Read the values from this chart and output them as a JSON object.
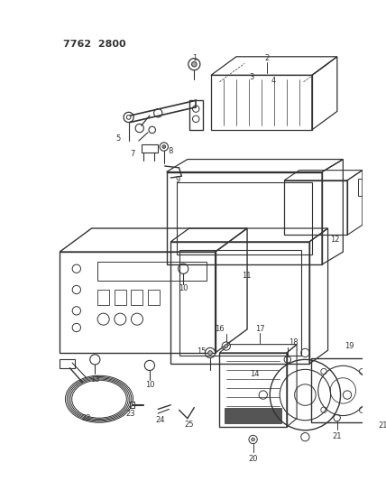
{
  "title": "7762 2800",
  "bg_color": "#ffffff",
  "line_color": "#333333",
  "figsize": [
    4.28,
    5.33
  ],
  "dpi": 100
}
